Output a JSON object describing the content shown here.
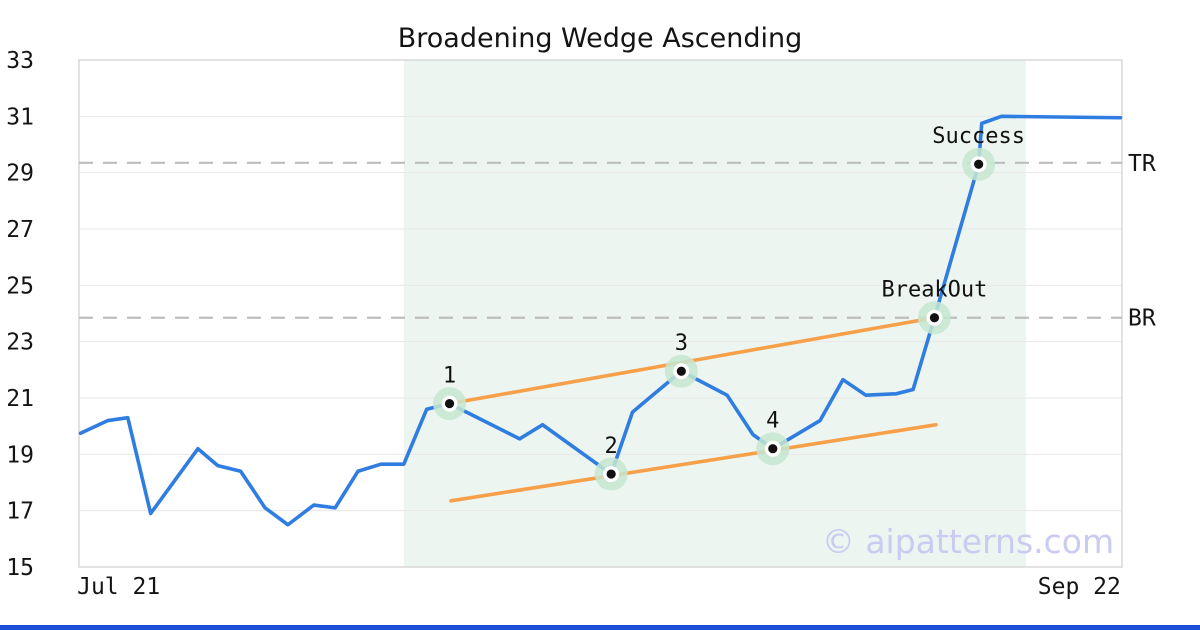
{
  "title": "Broadening Wedge Ascending",
  "watermark": "© aipatterns.com",
  "colors": {
    "price_line": "#2f7de1",
    "trend_line": "#f7a04a",
    "marker_halo": "#c6e6d0",
    "marker_ring": "#ffffff",
    "marker_dot": "#111111",
    "pattern_shade": "#edf5f1",
    "grid": "#e7e7e7",
    "border": "#d8d8d8",
    "dashed_level": "#bdbdbd",
    "watermark": "#c9cbf1",
    "bottom_bar": "#1d4ed8",
    "text": "#141414"
  },
  "chart_data": {
    "type": "line",
    "title": "Broadening Wedge Ascending",
    "xlabel": "",
    "ylabel": "",
    "x_unit": "days (Jul 21 = day 0)",
    "x_range": [
      -2.6,
      65.8
    ],
    "y_range": [
      15,
      33
    ],
    "grid": true,
    "legend": "none",
    "x_ticks": [
      {
        "day": 0,
        "label": "Jul 21"
      },
      {
        "day": 63,
        "label": "Sep 22"
      }
    ],
    "y_ticks": [
      15,
      17,
      19,
      21,
      23,
      25,
      27,
      29,
      31,
      33
    ],
    "price_series": [
      [
        -2.5,
        19.75
      ],
      [
        -0.7,
        20.2
      ],
      [
        0.6,
        20.3
      ],
      [
        2.1,
        16.9
      ],
      [
        5.2,
        19.2
      ],
      [
        6.5,
        18.6
      ],
      [
        8.0,
        18.4
      ],
      [
        9.6,
        17.1
      ],
      [
        11.1,
        16.5
      ],
      [
        12.8,
        17.2
      ],
      [
        14.2,
        17.1
      ],
      [
        15.7,
        18.4
      ],
      [
        17.2,
        18.65
      ],
      [
        18.7,
        18.65
      ],
      [
        20.2,
        20.6
      ],
      [
        21.7,
        20.8
      ],
      [
        26.3,
        19.55
      ],
      [
        27.8,
        20.05
      ],
      [
        32.3,
        18.3
      ],
      [
        33.7,
        20.5
      ],
      [
        34.8,
        21.0
      ],
      [
        36.9,
        21.95
      ],
      [
        39.9,
        21.1
      ],
      [
        41.6,
        19.7
      ],
      [
        42.9,
        19.2
      ],
      [
        46.0,
        20.2
      ],
      [
        47.5,
        21.65
      ],
      [
        49.0,
        21.1
      ],
      [
        51.0,
        21.15
      ],
      [
        52.1,
        21.3
      ],
      [
        53.5,
        23.85
      ],
      [
        56.4,
        29.3
      ],
      [
        56.6,
        30.75
      ],
      [
        57.9,
        31.0
      ],
      [
        65.7,
        30.95
      ]
    ],
    "pattern_zone": {
      "start_day": 18.7,
      "end_day": 59.5
    },
    "trendlines": [
      {
        "name": "upper",
        "from": [
          21.7,
          20.8
        ],
        "to": [
          53.5,
          23.85
        ]
      },
      {
        "name": "lower",
        "from": [
          21.8,
          17.35
        ],
        "to": [
          53.6,
          20.05
        ]
      }
    ],
    "levels": [
      {
        "label": "TR",
        "value": 29.35
      },
      {
        "label": "BR",
        "value": 23.85
      }
    ],
    "markers": [
      {
        "label": "1",
        "day": 21.7,
        "value": 20.8
      },
      {
        "label": "2",
        "day": 32.3,
        "value": 18.3
      },
      {
        "label": "3",
        "day": 36.9,
        "value": 21.95
      },
      {
        "label": "4",
        "day": 42.9,
        "value": 19.2
      },
      {
        "label": "BreakOut",
        "day": 53.5,
        "value": 23.85
      },
      {
        "label": "Success",
        "day": 56.4,
        "value": 29.3
      }
    ]
  }
}
